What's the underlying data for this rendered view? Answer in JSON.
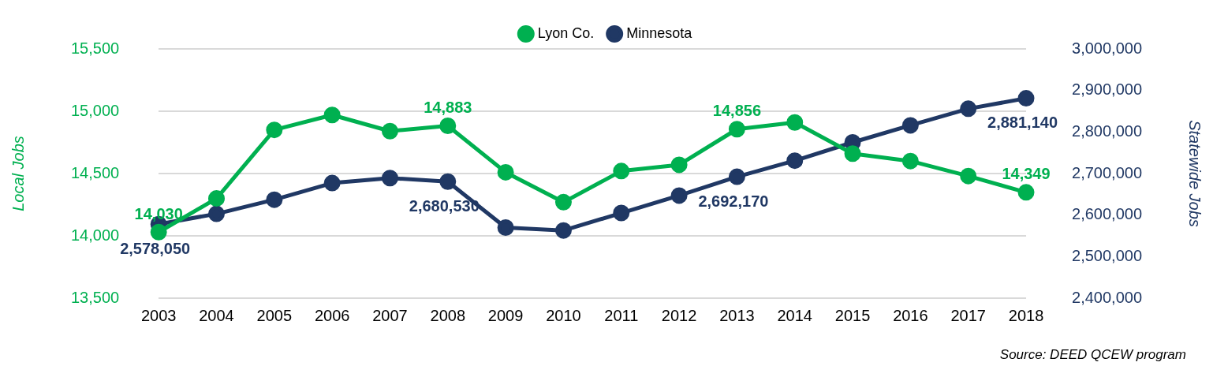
{
  "chart_data": {
    "type": "line",
    "categories": [
      "2003",
      "2004",
      "2005",
      "2006",
      "2007",
      "2008",
      "2009",
      "2010",
      "2011",
      "2012",
      "2013",
      "2014",
      "2015",
      "2016",
      "2017",
      "2018"
    ],
    "series": [
      {
        "name": "Lyon Co.",
        "color": "#00b050",
        "axis": "y",
        "values": [
          14030,
          14300,
          14850,
          14970,
          14840,
          14883,
          14510,
          14270,
          14520,
          14570,
          14856,
          14910,
          14660,
          14600,
          14480,
          14349
        ],
        "value_labels": [
          "14,030",
          null,
          null,
          null,
          null,
          "14,883",
          null,
          null,
          null,
          null,
          "14,856",
          null,
          null,
          null,
          null,
          "14,349"
        ]
      },
      {
        "name": "Minnesota",
        "color": "#203864",
        "axis": "y2",
        "values": [
          2578050,
          2603000,
          2637000,
          2677000,
          2689000,
          2680530,
          2570000,
          2563000,
          2605000,
          2647000,
          2692170,
          2731000,
          2775000,
          2816000,
          2856000,
          2881140
        ],
        "value_labels": [
          "2,578,050",
          null,
          null,
          null,
          null,
          "2,680,530",
          null,
          null,
          null,
          null,
          "2,692,170",
          null,
          null,
          null,
          null,
          "2,881,140"
        ]
      }
    ],
    "ylabel": "Local Jobs",
    "y2label": "Statewide Jobs",
    "ylim": [
      13500,
      15500
    ],
    "yticks": [
      {
        "value": 13500,
        "label": "13,500"
      },
      {
        "value": 14000,
        "label": "14,000"
      },
      {
        "value": 14500,
        "label": "14,500"
      },
      {
        "value": 15000,
        "label": "15,000"
      },
      {
        "value": 15500,
        "label": "15,500"
      }
    ],
    "y2lim": [
      2400000,
      3000000
    ],
    "y2ticks": [
      {
        "value": 2400000,
        "label": "2,400,000"
      },
      {
        "value": 2500000,
        "label": "2,500,000"
      },
      {
        "value": 2600000,
        "label": "2,600,000"
      },
      {
        "value": 2700000,
        "label": "2,700,000"
      },
      {
        "value": 2800000,
        "label": "2,800,000"
      },
      {
        "value": 2900000,
        "label": "2,900,000"
      },
      {
        "value": 3000000,
        "label": "3,000,000"
      }
    ],
    "grid": "y",
    "legend": "top",
    "marker": "circle",
    "line_style": "solid",
    "annotations": [
      "Source: DEED QCEW program"
    ]
  }
}
